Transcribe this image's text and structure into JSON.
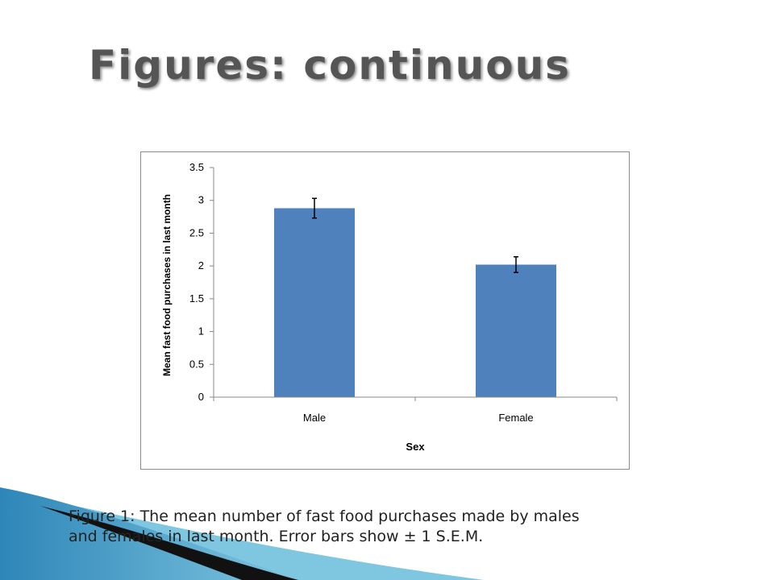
{
  "slide": {
    "title": "Figures: continuous",
    "caption_line1": "Figure 1: The mean number of fast food purchases made by males",
    "caption_line2": "and females in last month. Error bars show ± 1 S.E.M."
  },
  "colors": {
    "bar": "#4f81bd",
    "swoosh_blue": "#2e86b8",
    "swoosh_light": "#7fc6e0",
    "swoosh_dark": "#111111"
  },
  "chart_data": {
    "type": "bar",
    "categories": [
      "Male",
      "Female"
    ],
    "values": [
      2.88,
      2.02
    ],
    "errors": [
      0.15,
      0.12
    ],
    "xlabel": "Sex",
    "ylabel": "Mean fast food purchases in last month",
    "ylim": [
      0,
      3.5
    ],
    "yticks": [
      "0",
      "0.5",
      "1",
      "1.5",
      "2",
      "2.5",
      "3",
      "3.5"
    ],
    "grid": false,
    "legend": "none"
  }
}
